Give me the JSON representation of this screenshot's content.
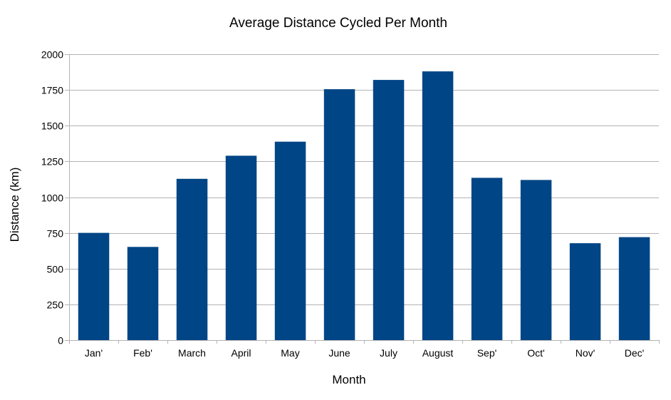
{
  "chart_data": {
    "type": "bar",
    "title": "Average Distance Cycled Per Month",
    "xlabel": "Month",
    "ylabel": "Distance (km)",
    "categories": [
      "Jan'",
      "Feb'",
      "March",
      "April",
      "May",
      "June",
      "July",
      "August",
      "Sep'",
      "Oct'",
      "Nov'",
      "Dec'"
    ],
    "values": [
      750,
      652,
      1128,
      1290,
      1388,
      1755,
      1820,
      1880,
      1135,
      1120,
      678,
      720
    ],
    "ylim": [
      0,
      2000
    ],
    "yticks": [
      "0",
      "250",
      "500",
      "750",
      "1000",
      "1250",
      "1500",
      "1750",
      "2000"
    ],
    "grid": true,
    "legend": "none",
    "colors": {
      "bar": "#004586",
      "grid": "#b3b3b3",
      "axis": "#b3b3b3"
    }
  }
}
